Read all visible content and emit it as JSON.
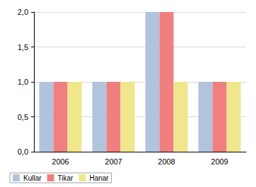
{
  "chart_data": {
    "type": "bar",
    "categories": [
      "2006",
      "2007",
      "2008",
      "2009"
    ],
    "series": [
      {
        "name": "Kullar",
        "color": "#b0c4de",
        "values": [
          1,
          1,
          2,
          1
        ]
      },
      {
        "name": "Tikar",
        "color": "#f08080",
        "values": [
          1,
          1,
          2,
          1
        ]
      },
      {
        "name": "Hanar",
        "color": "#f0e68c",
        "values": [
          1,
          1,
          1,
          1
        ]
      }
    ],
    "ylim": [
      0,
      2
    ],
    "yticks": [
      {
        "value": 0,
        "label": "0,0"
      },
      {
        "value": 0.5,
        "label": "0,5"
      },
      {
        "value": 1,
        "label": "1,0"
      },
      {
        "value": 1.5,
        "label": "1,5"
      },
      {
        "value": 2,
        "label": "2,0"
      }
    ],
    "grid": true,
    "legend": "bottom-left"
  }
}
